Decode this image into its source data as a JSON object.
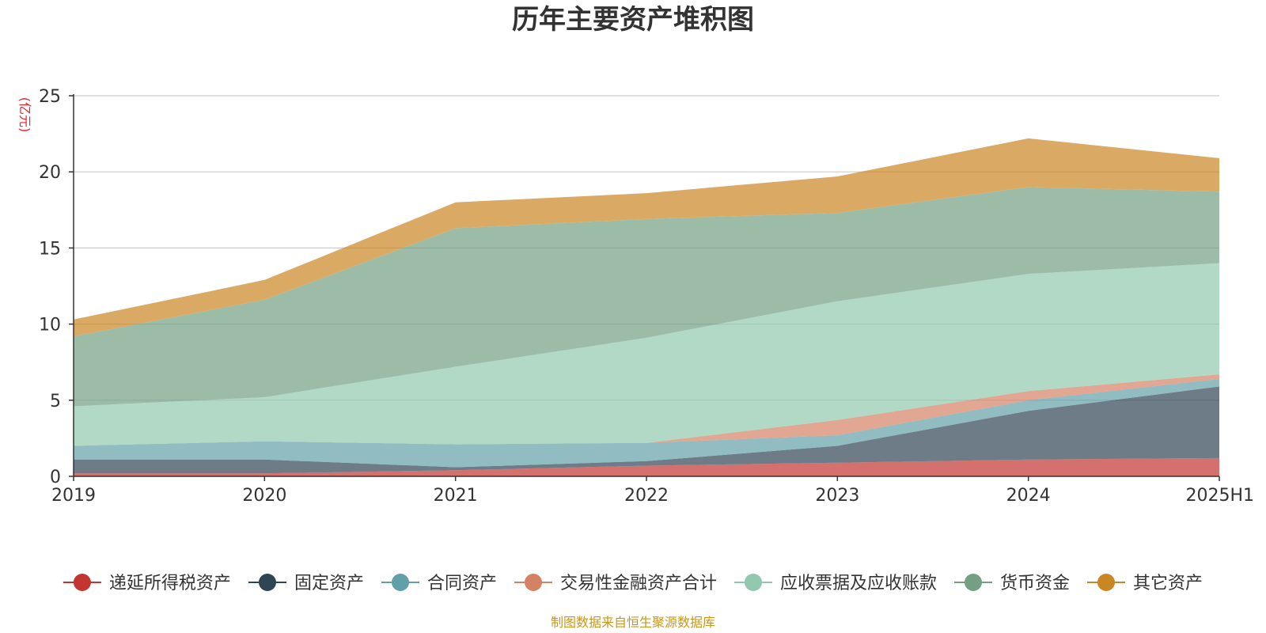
{
  "chart_data": {
    "type": "area",
    "stacked": true,
    "title": "历年主要资产堆积图",
    "ylabel": "(亿元)",
    "xlabel": "",
    "categories": [
      "2019",
      "2020",
      "2021",
      "2022",
      "2023",
      "2024",
      "2025H1"
    ],
    "ylim": [
      0,
      25
    ],
    "yticks": [
      0,
      5,
      10,
      15,
      20,
      25
    ],
    "grid": true,
    "legend_position": "bottom",
    "series": [
      {
        "name": "递延所得税资产",
        "color": "#c23531",
        "values": [
          0.2,
          0.2,
          0.4,
          0.7,
          0.9,
          1.1,
          1.2
        ]
      },
      {
        "name": "固定资产",
        "color": "#2f4554",
        "values": [
          0.9,
          0.9,
          0.2,
          0.3,
          1.1,
          3.2,
          4.7
        ]
      },
      {
        "name": "合同资产",
        "color": "#61a0a8",
        "values": [
          0.9,
          1.2,
          1.5,
          1.2,
          0.7,
          0.7,
          0.5
        ]
      },
      {
        "name": "交易性金融资产合计",
        "color": "#d48265",
        "values": [
          0.0,
          0.0,
          0.0,
          0.0,
          1.0,
          0.6,
          0.3
        ]
      },
      {
        "name": "应收票据及应收账款",
        "color": "#91c7ae",
        "values": [
          2.6,
          2.9,
          5.1,
          6.9,
          7.8,
          7.7,
          7.3
        ]
      },
      {
        "name": "货币资金",
        "color": "#749f83",
        "values": [
          4.6,
          6.4,
          9.1,
          7.8,
          5.8,
          5.7,
          4.7
        ]
      },
      {
        "name": "其它资产",
        "color": "#ca8622",
        "values": [
          1.1,
          1.3,
          1.7,
          1.7,
          2.4,
          3.2,
          2.2
        ]
      }
    ]
  },
  "source": "制图数据来自恒生聚源数据库"
}
